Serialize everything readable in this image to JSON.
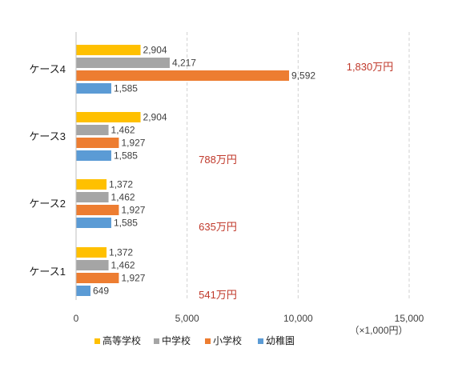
{
  "chart_data": {
    "type": "bar",
    "orientation": "horizontal",
    "categories": [
      "ケース4",
      "ケース3",
      "ケース2",
      "ケース1"
    ],
    "series": [
      {
        "name": "高等学校",
        "color": "#FFC000",
        "values": [
          2904,
          2904,
          1372,
          1372
        ],
        "labels": [
          "2,904",
          "2,904",
          "1,372",
          "1,372"
        ]
      },
      {
        "name": "中学校",
        "color": "#A5A5A5",
        "values": [
          4217,
          1462,
          1462,
          1462
        ],
        "labels": [
          "4,217",
          "1,462",
          "1,462",
          "1,462"
        ]
      },
      {
        "name": "小学校",
        "color": "#ED7D31",
        "values": [
          9592,
          1927,
          1927,
          1927
        ],
        "labels": [
          "9,592",
          "1,927",
          "1,927",
          "1,927"
        ]
      },
      {
        "name": "幼稚園",
        "color": "#5B9BD5",
        "values": [
          1585,
          1585,
          1585,
          649
        ],
        "labels": [
          "1,585",
          "1,585",
          "1,585",
          "649"
        ]
      }
    ],
    "totals": [
      "1,830万円",
      "788万円",
      "635万円",
      "541万円"
    ],
    "xlim": [
      0,
      15000
    ],
    "xticks": [
      0,
      5000,
      10000,
      15000
    ],
    "xtick_labels": [
      "0",
      "5,000",
      "10,000",
      "15,000"
    ],
    "unit_label": "（×1,000円）",
    "grid": "vertical-dashed",
    "legend_position": "bottom",
    "total_color": "#C0392B"
  }
}
